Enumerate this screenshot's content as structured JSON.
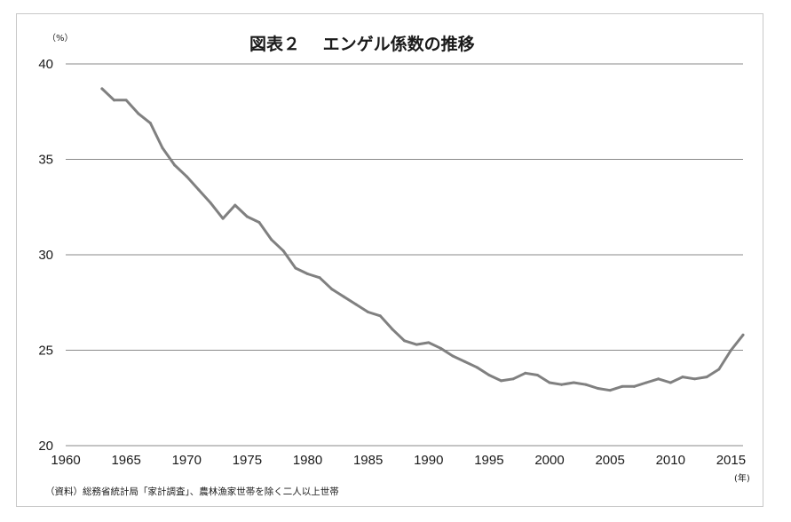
{
  "chart_data": {
    "type": "line",
    "title": "図表２　 エンゲル係数の推移",
    "ylabel_unit": "（%）",
    "xlabel_unit": "(年)",
    "source_note": "（資料）総務省統計局「家計調査」、農林漁家世帯を除く二人以上世帯",
    "xlim": [
      1960,
      2016
    ],
    "ylim": [
      20,
      40
    ],
    "x_ticks": [
      "1960",
      "1965",
      "1970",
      "1975",
      "1980",
      "1985",
      "1990",
      "1995",
      "2000",
      "2005",
      "2010",
      "2015"
    ],
    "y_ticks": [
      "20",
      "25",
      "30",
      "35",
      "40"
    ],
    "grid": true,
    "legend": "none",
    "color": "#808080",
    "x": [
      1963,
      1964,
      1965,
      1966,
      1967,
      1968,
      1969,
      1970,
      1971,
      1972,
      1973,
      1974,
      1975,
      1976,
      1977,
      1978,
      1979,
      1980,
      1981,
      1982,
      1983,
      1984,
      1985,
      1986,
      1987,
      1988,
      1989,
      1990,
      1991,
      1992,
      1993,
      1994,
      1995,
      1996,
      1997,
      1998,
      1999,
      2000,
      2001,
      2002,
      2003,
      2004,
      2005,
      2006,
      2007,
      2008,
      2009,
      2010,
      2011,
      2012,
      2013,
      2014,
      2015,
      2016
    ],
    "values": [
      38.7,
      38.1,
      38.1,
      37.4,
      36.9,
      35.6,
      34.7,
      34.1,
      33.4,
      32.7,
      31.9,
      32.6,
      32.0,
      31.7,
      30.8,
      30.2,
      29.3,
      29.0,
      28.8,
      28.2,
      27.8,
      27.4,
      27.0,
      26.8,
      26.1,
      25.5,
      25.3,
      25.4,
      25.1,
      24.7,
      24.4,
      24.1,
      23.7,
      23.4,
      23.5,
      23.8,
      23.7,
      23.3,
      23.2,
      23.3,
      23.2,
      23.0,
      22.9,
      23.1,
      23.1,
      23.3,
      23.5,
      23.3,
      23.6,
      23.5,
      23.6,
      24.0,
      25.0,
      25.8
    ]
  }
}
